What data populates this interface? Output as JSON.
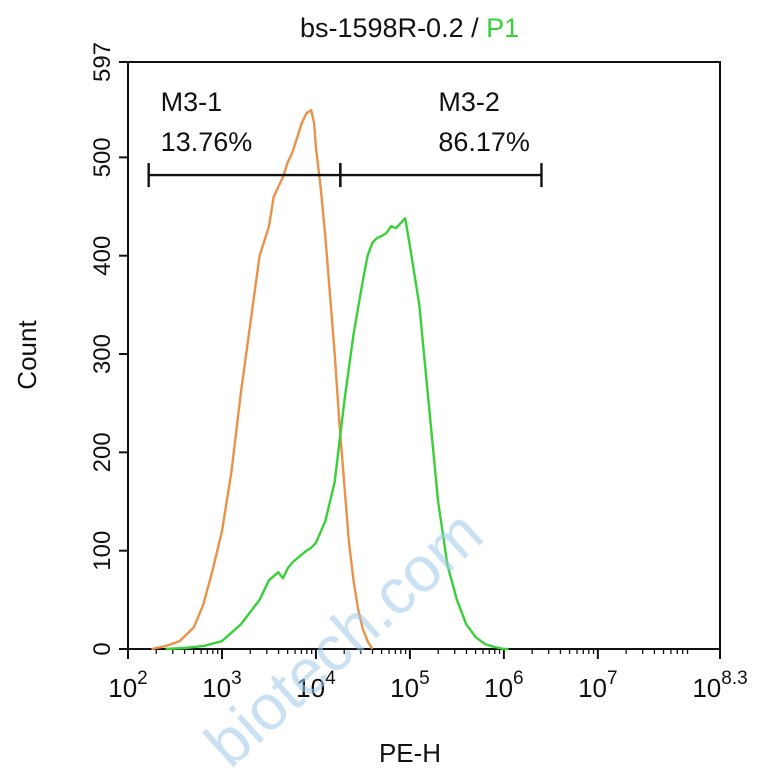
{
  "chart_data": {
    "type": "area",
    "title_main": "bs-1598R-0.2 / ",
    "title_gate": "P1",
    "xlabel": "PE-H",
    "ylabel": "Count",
    "x_scale": "log10",
    "xlim": [
      2,
      8.3
    ],
    "ylim": [
      0,
      597
    ],
    "x_ticks": [
      {
        "base": "10",
        "exp": "2",
        "v": 2
      },
      {
        "base": "10",
        "exp": "3",
        "v": 3
      },
      {
        "base": "10",
        "exp": "4",
        "v": 4
      },
      {
        "base": "10",
        "exp": "5",
        "v": 5
      },
      {
        "base": "10",
        "exp": "6",
        "v": 6
      },
      {
        "base": "10",
        "exp": "7",
        "v": 7
      },
      {
        "base": "10",
        "exp": "8.3",
        "v": 8.3
      }
    ],
    "y_ticks": [
      "0",
      "100",
      "200",
      "300",
      "400",
      "500",
      "597"
    ],
    "y_tick_values": [
      0,
      100,
      200,
      300,
      400,
      500,
      597
    ],
    "series": [
      {
        "color": "#e8924a",
        "x": [
          2.25,
          2.4,
          2.55,
          2.7,
          2.8,
          2.9,
          3.0,
          3.1,
          3.2,
          3.3,
          3.4,
          3.5,
          3.55,
          3.6,
          3.65,
          3.7,
          3.75,
          3.8,
          3.85,
          3.9,
          3.95,
          3.98,
          4.0,
          4.05,
          4.1,
          4.15,
          4.2,
          4.25,
          4.3,
          4.35,
          4.4,
          4.45,
          4.5,
          4.55,
          4.6
        ],
        "y": [
          0,
          3,
          8,
          22,
          45,
          80,
          120,
          180,
          260,
          330,
          400,
          430,
          460,
          470,
          480,
          495,
          505,
          520,
          535,
          545,
          548,
          535,
          510,
          470,
          420,
          360,
          300,
          230,
          170,
          110,
          70,
          40,
          20,
          8,
          0
        ]
      },
      {
        "color": "#39d039",
        "x": [
          2.4,
          2.6,
          2.8,
          3.0,
          3.2,
          3.4,
          3.5,
          3.6,
          3.65,
          3.7,
          3.75,
          3.8,
          3.85,
          3.9,
          3.95,
          4.0,
          4.1,
          4.2,
          4.3,
          4.4,
          4.5,
          4.55,
          4.6,
          4.65,
          4.7,
          4.75,
          4.8,
          4.85,
          4.9,
          4.95,
          5.0,
          5.1,
          5.2,
          5.3,
          5.4,
          5.5,
          5.6,
          5.7,
          5.8,
          5.9,
          6.0,
          6.05
        ],
        "y": [
          0,
          1,
          3,
          8,
          25,
          50,
          70,
          78,
          72,
          82,
          88,
          92,
          96,
          100,
          103,
          108,
          130,
          170,
          250,
          320,
          375,
          400,
          413,
          418,
          420,
          423,
          430,
          428,
          433,
          438,
          410,
          350,
          250,
          150,
          85,
          50,
          25,
          12,
          5,
          2,
          0,
          0
        ]
      }
    ],
    "markers": [
      {
        "label": "M3-1",
        "percent": "13.76%",
        "x_start": 2.22,
        "x_end": 4.26
      },
      {
        "label": "M3-2",
        "percent": "86.17%",
        "x_start": 4.26,
        "x_end": 6.4
      }
    ],
    "marker_y": 482,
    "watermark": "biotech.com",
    "gate_color": "#39d039"
  }
}
